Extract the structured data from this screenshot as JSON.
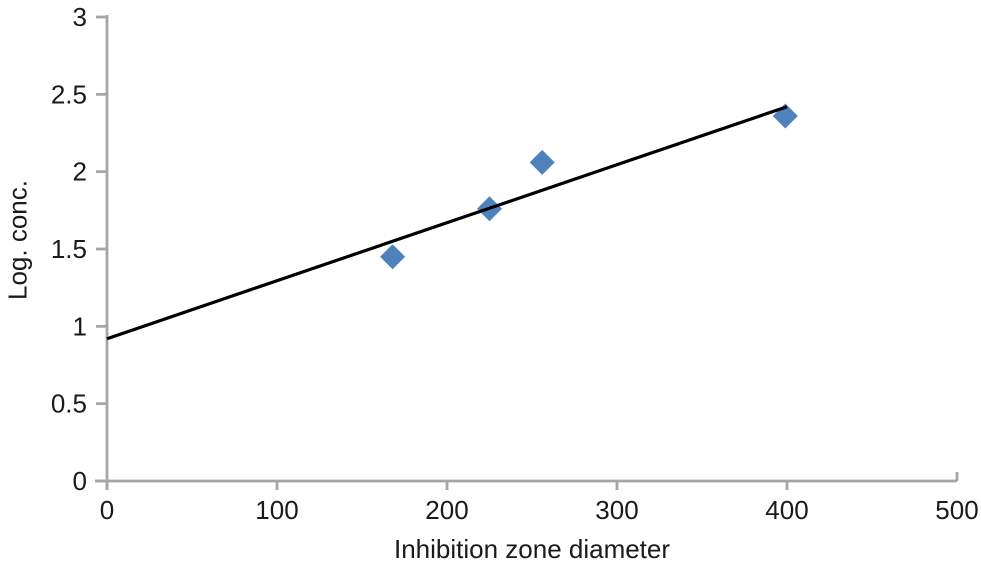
{
  "chart_data": {
    "type": "scatter",
    "title": "",
    "xlabel": "Inhibition zone diameter",
    "ylabel": "Log. conc.",
    "xlim": [
      0,
      500
    ],
    "ylim": [
      0,
      3
    ],
    "x_ticks": [
      0,
      100,
      200,
      300,
      400,
      500
    ],
    "y_ticks": [
      0,
      0.5,
      1,
      1.5,
      2,
      2.5,
      3
    ],
    "grid": false,
    "legend": false,
    "series": [
      {
        "marker": "diamond",
        "color": "#4F81BD",
        "points": [
          {
            "x": 168,
            "y": 1.45
          },
          {
            "x": 225,
            "y": 1.76
          },
          {
            "x": 256,
            "y": 2.06
          },
          {
            "x": 399,
            "y": 2.36
          }
        ]
      }
    ],
    "trendline": {
      "x1": 0,
      "y1": 0.92,
      "x2": 400,
      "y2": 2.42,
      "color": "#000000"
    }
  },
  "colors": {
    "axis": "#A6A6A6",
    "tick_text": "#1A1A1A",
    "marker": "#4F81BD",
    "trend": "#000000",
    "background": "#FFFFFF"
  }
}
